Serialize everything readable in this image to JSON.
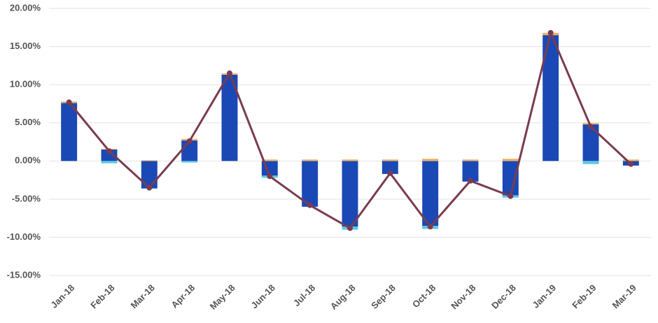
{
  "chart_data": {
    "type": "bar",
    "stacked": true,
    "grid": true,
    "categories": [
      "Jan-18",
      "Feb-18",
      "Mar-18",
      "Apr-18",
      "May-18",
      "Jun-18",
      "Jul-18",
      "Aug-18",
      "Sep-18",
      "Oct-18",
      "Nov-18",
      "Dec-18",
      "Jan-19",
      "Feb-19",
      "Mar-19"
    ],
    "series": [
      {
        "color": "#1a49b5",
        "values": [
          7.6,
          1.5,
          -3.6,
          2.7,
          11.3,
          -1.9,
          -6.0,
          -8.6,
          -1.7,
          -8.5,
          -2.7,
          -4.5,
          16.5,
          4.8,
          -0.6
        ]
      },
      {
        "color": "#5bc8e0",
        "values": [
          0,
          -0.3,
          0,
          -0.2,
          0,
          -0.3,
          0,
          -0.4,
          0,
          -0.4,
          0,
          -0.3,
          0,
          -0.4,
          0
        ]
      },
      {
        "color": "#f0b26b",
        "values": [
          0.2,
          0.1,
          0.1,
          0.2,
          0.2,
          0.2,
          0.2,
          0.2,
          0.2,
          0.3,
          0.2,
          0.3,
          0.3,
          0.2,
          0.2
        ]
      },
      {
        "type": "line",
        "color": "#7a3b52",
        "values": [
          7.7,
          1.3,
          -3.5,
          2.6,
          11.5,
          -2.0,
          -5.8,
          -8.8,
          -1.6,
          -8.6,
          -2.6,
          -4.6,
          16.8,
          4.5,
          -0.4
        ]
      }
    ],
    "ylim": [
      -15,
      20
    ],
    "yticks": [
      {
        "value": -15,
        "label": "-15.00%"
      },
      {
        "value": -10,
        "label": "-10.00%"
      },
      {
        "value": -5,
        "label": "-5.00%"
      },
      {
        "value": 0,
        "label": "0.00%"
      },
      {
        "value": 5,
        "label": "5.00%"
      },
      {
        "value": 10,
        "label": "10.00%"
      },
      {
        "value": 15,
        "label": "15.00%"
      },
      {
        "value": 20,
        "label": "20.00%"
      }
    ]
  }
}
